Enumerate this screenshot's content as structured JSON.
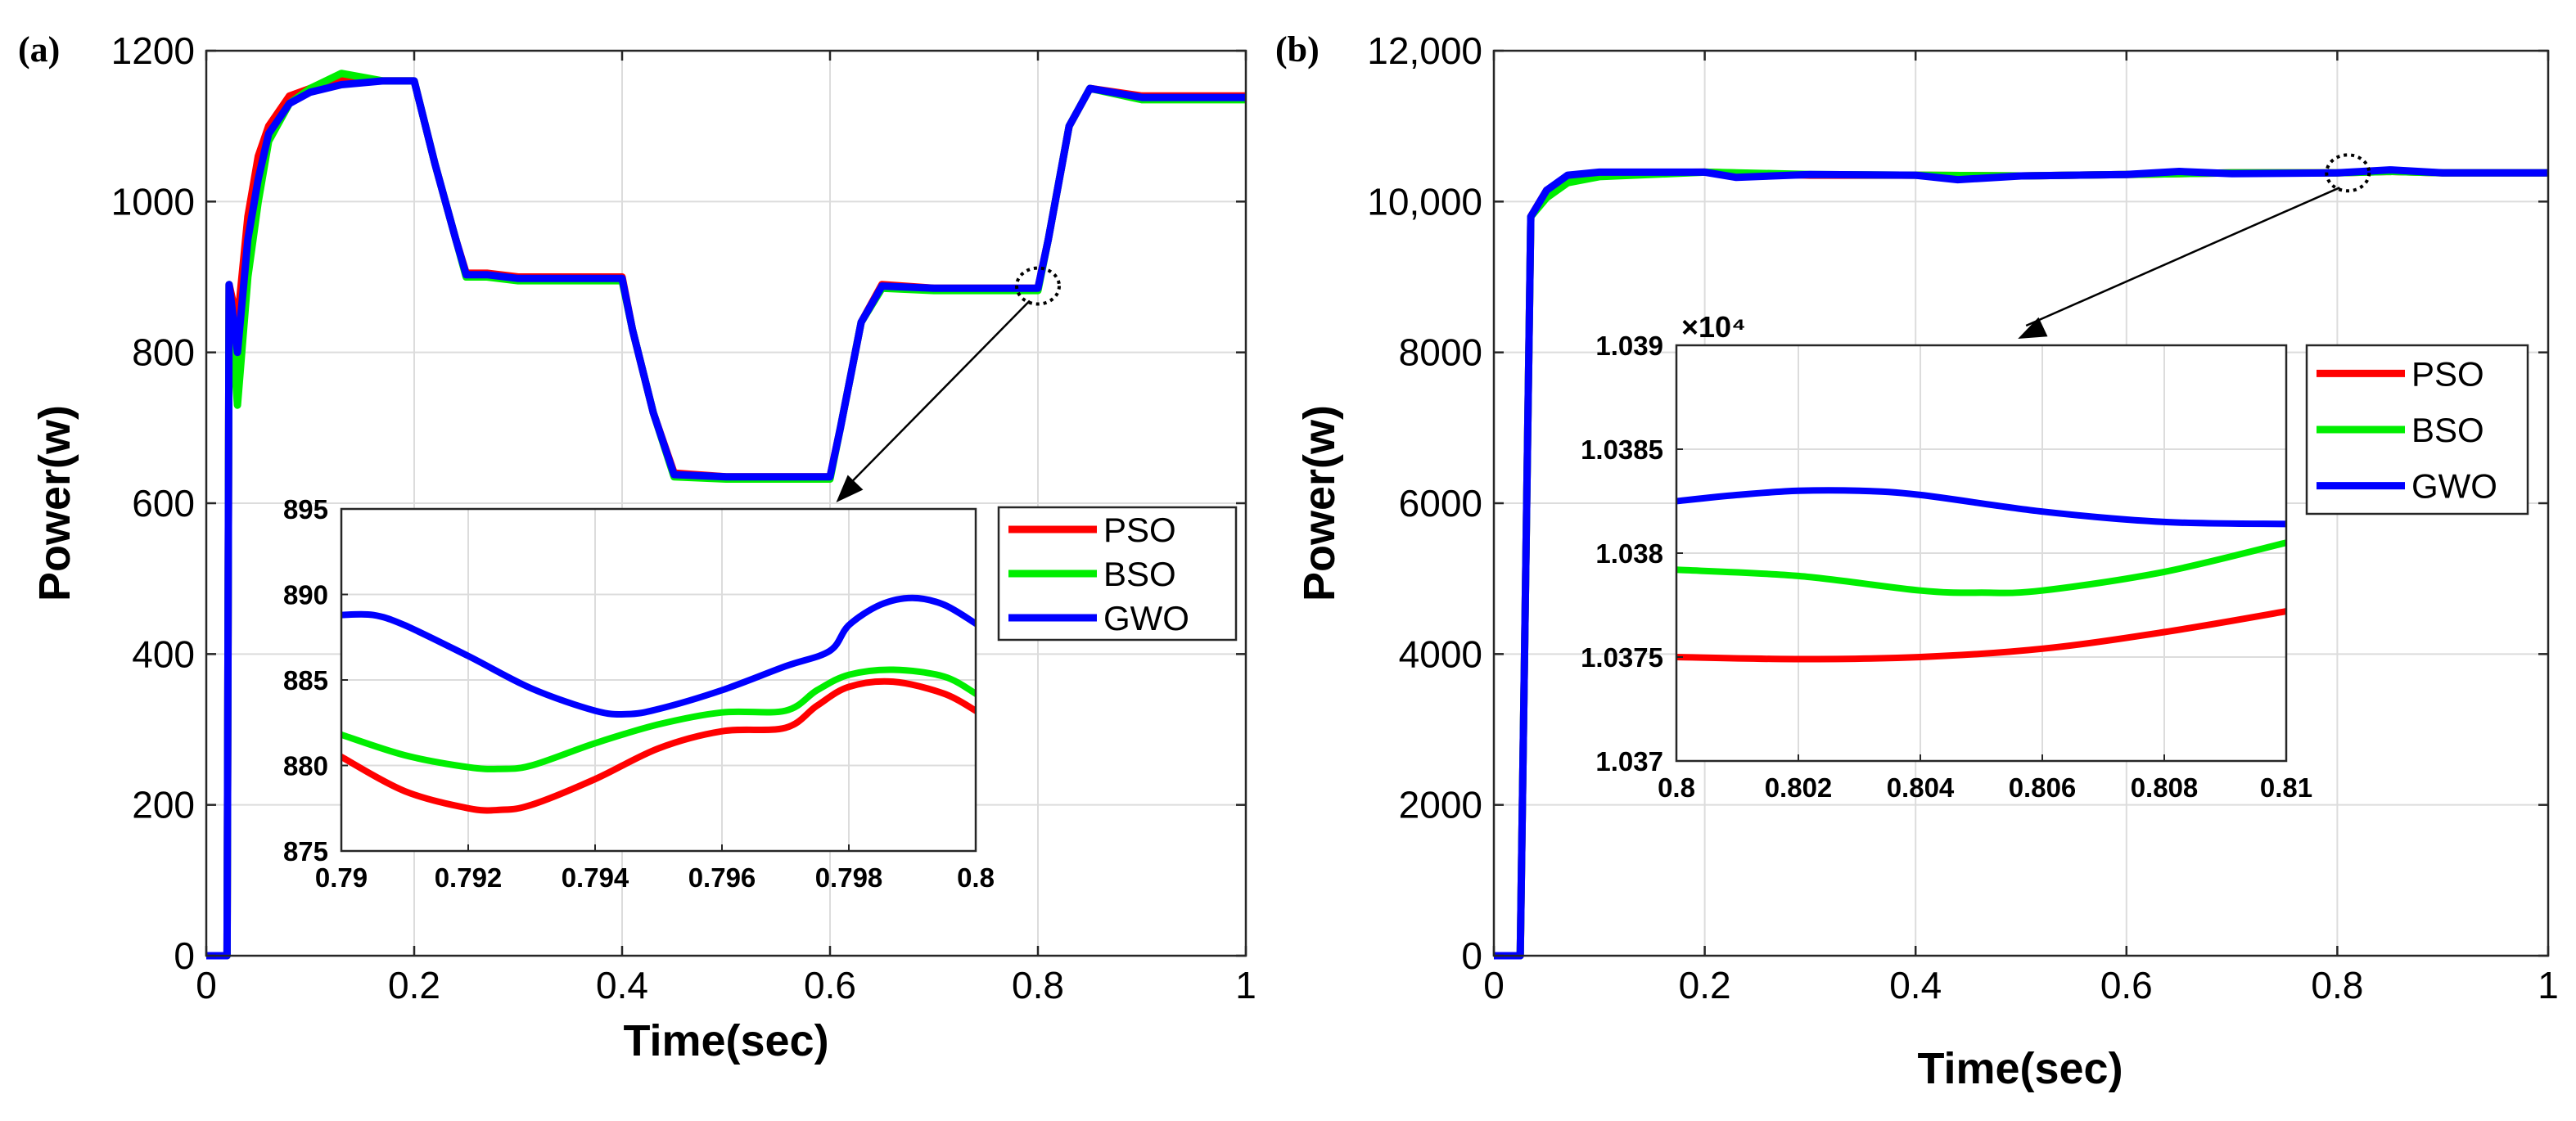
{
  "chart_data": [
    {
      "panel_label": "(a)",
      "type": "line",
      "xlabel": "Time(sec)",
      "ylabel": "Power(w)",
      "xlim": [
        0,
        1
      ],
      "ylim": [
        0,
        1200
      ],
      "xticks": [
        0,
        0.2,
        0.4,
        0.6,
        0.8,
        1
      ],
      "xtick_labels": [
        "0",
        "0.2",
        "0.4",
        "0.6",
        "0.8",
        "1"
      ],
      "yticks": [
        0,
        200,
        400,
        600,
        800,
        1000,
        1200
      ],
      "ytick_labels": [
        "0",
        "200",
        "400",
        "600",
        "800",
        "1000",
        "1200"
      ],
      "grid": true,
      "series": [
        {
          "name": "PSO",
          "color": "#ff0000",
          "x": [
            0,
            0.02,
            0.022,
            0.03,
            0.04,
            0.05,
            0.06,
            0.08,
            0.1,
            0.13,
            0.17,
            0.2,
            0.22,
            0.24,
            0.25,
            0.27,
            0.3,
            0.4,
            0.41,
            0.43,
            0.45,
            0.5,
            0.6,
            0.61,
            0.63,
            0.65,
            0.7,
            0.8,
            0.81,
            0.83,
            0.85,
            0.9,
            1
          ],
          "y": [
            0,
            0,
            890,
            840,
            980,
            1060,
            1100,
            1140,
            1150,
            1160,
            1160,
            1160,
            1050,
            950,
            905,
            905,
            900,
            900,
            830,
            720,
            640,
            635,
            635,
            700,
            840,
            890,
            885,
            885,
            950,
            1100,
            1150,
            1140,
            1140
          ]
        },
        {
          "name": "BSO",
          "color": "#00ee00",
          "x": [
            0,
            0.02,
            0.022,
            0.03,
            0.04,
            0.05,
            0.06,
            0.08,
            0.1,
            0.13,
            0.17,
            0.2,
            0.22,
            0.24,
            0.25,
            0.27,
            0.3,
            0.4,
            0.41,
            0.43,
            0.45,
            0.5,
            0.6,
            0.61,
            0.63,
            0.65,
            0.7,
            0.8,
            0.81,
            0.83,
            0.85,
            0.9,
            1
          ],
          "y": [
            0,
            0,
            890,
            730,
            900,
            1000,
            1080,
            1130,
            1150,
            1170,
            1160,
            1160,
            1050,
            950,
            900,
            900,
            895,
            895,
            830,
            720,
            635,
            632,
            632,
            700,
            840,
            885,
            882,
            882,
            950,
            1100,
            1150,
            1135,
            1135
          ]
        },
        {
          "name": "GWO",
          "color": "#0000ff",
          "x": [
            0,
            0.02,
            0.022,
            0.03,
            0.04,
            0.05,
            0.06,
            0.08,
            0.1,
            0.13,
            0.17,
            0.2,
            0.22,
            0.24,
            0.25,
            0.27,
            0.3,
            0.4,
            0.41,
            0.43,
            0.45,
            0.5,
            0.6,
            0.61,
            0.63,
            0.65,
            0.7,
            0.8,
            0.81,
            0.83,
            0.85,
            0.9,
            1
          ],
          "y": [
            0,
            0,
            890,
            800,
            950,
            1030,
            1090,
            1130,
            1145,
            1155,
            1160,
            1160,
            1050,
            950,
            903,
            903,
            898,
            898,
            830,
            720,
            638,
            635,
            635,
            700,
            840,
            888,
            885,
            885,
            950,
            1100,
            1150,
            1138,
            1138
          ]
        }
      ],
      "inset": {
        "xlim": [
          0.79,
          0.8
        ],
        "ylim": [
          875,
          895
        ],
        "xticks": [
          0.79,
          0.792,
          0.794,
          0.796,
          0.798,
          0.8
        ],
        "xtick_labels": [
          "0.79",
          "0.792",
          "0.794",
          "0.796",
          "0.798",
          "0.8"
        ],
        "yticks": [
          875,
          880,
          885,
          890,
          895
        ],
        "ytick_labels": [
          "875",
          "880",
          "885",
          "890",
          "895"
        ],
        "zoom_point": [
          0.8,
          888
        ],
        "series": [
          {
            "name": "PSO",
            "color": "#ff0000",
            "x": [
              0.79,
              0.791,
              0.792,
              0.7925,
              0.793,
              0.794,
              0.795,
              0.796,
              0.797,
              0.7975,
              0.798,
              0.7987,
              0.7995,
              0.8
            ],
            "y": [
              880.5,
              878.5,
              877.5,
              877.4,
              877.7,
              879.2,
              881,
              882,
              882.2,
              883.5,
              884.6,
              884.9,
              884.2,
              883.2
            ]
          },
          {
            "name": "BSO",
            "color": "#00ee00",
            "x": [
              0.79,
              0.791,
              0.792,
              0.7925,
              0.793,
              0.794,
              0.795,
              0.796,
              0.797,
              0.7975,
              0.798,
              0.7987,
              0.7995,
              0.8
            ],
            "y": [
              881.8,
              880.6,
              879.9,
              879.8,
              880,
              881.3,
              882.4,
              883.1,
              883.2,
              884.4,
              885.3,
              885.6,
              885.2,
              884.2
            ]
          },
          {
            "name": "GWO",
            "color": "#0000ff",
            "x": [
              0.79,
              0.7905,
              0.791,
              0.792,
              0.793,
              0.794,
              0.7945,
              0.795,
              0.796,
              0.797,
              0.7977,
              0.798,
              0.7985,
              0.799,
              0.7995,
              0.8
            ],
            "y": [
              888.8,
              888.8,
              888.2,
              886.4,
              884.5,
              883.2,
              883,
              883.3,
              884.4,
              885.8,
              886.7,
              888.2,
              889.4,
              889.8,
              889.4,
              888.3
            ]
          }
        ]
      },
      "legend": {
        "placement": "inset-right",
        "entries": [
          "PSO",
          "BSO",
          "GWO"
        ]
      }
    },
    {
      "panel_label": "(b)",
      "type": "line",
      "xlabel": "Time(sec)",
      "ylabel": "Power(w)",
      "xlim": [
        0,
        1
      ],
      "ylim": [
        0,
        12000
      ],
      "xticks": [
        0,
        0.2,
        0.4,
        0.6,
        0.8,
        1
      ],
      "xtick_labels": [
        "0",
        "0.2",
        "0.4",
        "0.6",
        "0.8",
        "1"
      ],
      "yticks": [
        0,
        2000,
        4000,
        6000,
        8000,
        10000,
        12000
      ],
      "ytick_labels": [
        "0",
        "2000",
        "4000",
        "6000",
        "8000",
        "10,000",
        "12,000"
      ],
      "grid": true,
      "series": [
        {
          "name": "PSO",
          "color": "#ff0000",
          "x": [
            0,
            0.025,
            0.035,
            0.05,
            0.07,
            0.1,
            0.2,
            0.3,
            0.4,
            0.5,
            0.6,
            0.7,
            0.8,
            0.85,
            0.9,
            1
          ],
          "y": [
            0,
            0,
            9800,
            10150,
            10300,
            10380,
            10390,
            10350,
            10350,
            10340,
            10360,
            10380,
            10380,
            10400,
            10380,
            10380
          ]
        },
        {
          "name": "BSO",
          "color": "#00ee00",
          "x": [
            0,
            0.025,
            0.035,
            0.05,
            0.07,
            0.1,
            0.2,
            0.3,
            0.4,
            0.5,
            0.6,
            0.7,
            0.8,
            0.85,
            0.9,
            1
          ],
          "y": [
            0,
            0,
            9800,
            10050,
            10250,
            10330,
            10390,
            10360,
            10350,
            10340,
            10360,
            10380,
            10380,
            10400,
            10380,
            10380
          ]
        },
        {
          "name": "GWO",
          "color": "#0000ff",
          "x": [
            0,
            0.025,
            0.035,
            0.05,
            0.07,
            0.1,
            0.2,
            0.23,
            0.3,
            0.4,
            0.44,
            0.5,
            0.6,
            0.65,
            0.7,
            0.8,
            0.85,
            0.9,
            1
          ],
          "y": [
            0,
            0,
            9800,
            10150,
            10350,
            10390,
            10390,
            10320,
            10360,
            10350,
            10290,
            10340,
            10360,
            10400,
            10370,
            10380,
            10420,
            10380,
            10380
          ]
        }
      ],
      "inset": {
        "exponent_label": "×10⁴",
        "xlim": [
          0.8,
          0.81
        ],
        "ylim": [
          1.037,
          1.039
        ],
        "xticks": [
          0.8,
          0.802,
          0.804,
          0.806,
          0.808,
          0.81
        ],
        "xtick_labels": [
          "0.8",
          "0.802",
          "0.804",
          "0.806",
          "0.808",
          "0.81"
        ],
        "yticks": [
          1.037,
          1.0375,
          1.038,
          1.0385,
          1.039
        ],
        "ytick_labels": [
          "1.037",
          "1.0375",
          "1.038",
          "1.0385",
          "1.039"
        ],
        "zoom_point": [
          0.81,
          10380
        ],
        "series": [
          {
            "name": "PSO",
            "color": "#ff0000",
            "x": [
              0.8,
              0.802,
              0.804,
              0.806,
              0.808,
              0.81
            ],
            "y": [
              1.0375,
              1.03749,
              1.0375,
              1.03754,
              1.03762,
              1.03772
            ]
          },
          {
            "name": "BSO",
            "color": "#00ee00",
            "x": [
              0.8,
              0.802,
              0.804,
              0.805,
              0.806,
              0.808,
              0.81
            ],
            "y": [
              1.03792,
              1.03789,
              1.03782,
              1.03781,
              1.03782,
              1.03791,
              1.03805
            ]
          },
          {
            "name": "GWO",
            "color": "#0000ff",
            "x": [
              0.8,
              0.801,
              0.802,
              0.803,
              0.804,
              0.806,
              0.808,
              0.81
            ],
            "y": [
              1.03825,
              1.03828,
              1.0383,
              1.0383,
              1.03828,
              1.0382,
              1.03815,
              1.03814
            ]
          }
        ]
      },
      "legend": {
        "placement": "top-right",
        "entries": [
          "PSO",
          "BSO",
          "GWO"
        ]
      }
    }
  ]
}
